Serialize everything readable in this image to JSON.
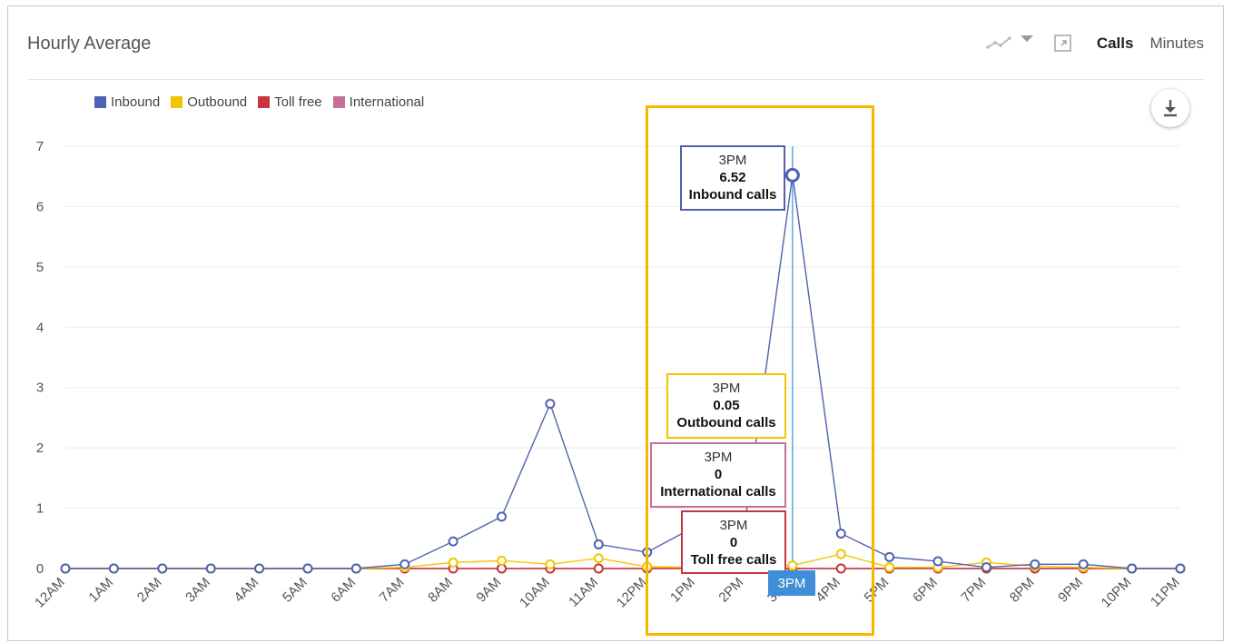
{
  "header": {
    "title": "Hourly Average",
    "calls_label": "Calls",
    "minutes_label": "Minutes"
  },
  "icons": {
    "chart_type": "line-chart-icon",
    "expand": "expand-icon",
    "download": "download-icon"
  },
  "colors": {
    "inbound": "#4e62b0",
    "outbound": "#f2c500",
    "tollfree": "#c9343f",
    "international": "#c4709a",
    "highlight": "#f5b800",
    "crosshair": "#3f8fd8"
  },
  "chart_data": {
    "type": "line",
    "title": "",
    "xlabel": "",
    "ylabel": "",
    "ylim": [
      0,
      7
    ],
    "yticks": [
      0,
      1,
      2,
      3,
      4,
      5,
      6,
      7
    ],
    "grid": true,
    "legend_position": "top-left",
    "categories": [
      "12AM",
      "1AM",
      "2AM",
      "3AM",
      "4AM",
      "5AM",
      "6AM",
      "7AM",
      "8AM",
      "9AM",
      "10AM",
      "11AM",
      "12PM",
      "1PM",
      "2PM",
      "3PM",
      "4PM",
      "5PM",
      "6PM",
      "7PM",
      "8PM",
      "9PM",
      "10PM",
      "11PM"
    ],
    "series": [
      {
        "name": "Inbound",
        "key": "inbound",
        "values": [
          0,
          0,
          0,
          0,
          0,
          0,
          0,
          0.07,
          0.45,
          0.86,
          2.73,
          0.4,
          0.27,
          0.7,
          0.65,
          6.52,
          0.58,
          0.19,
          0.12,
          0.02,
          0.07,
          0.07,
          0,
          0
        ]
      },
      {
        "name": "Outbound",
        "key": "outbound",
        "values": [
          0,
          0,
          0,
          0,
          0,
          0,
          0,
          0.02,
          0.1,
          0.13,
          0.07,
          0.17,
          0.03,
          0.02,
          0.03,
          0.05,
          0.24,
          0.02,
          0.02,
          0.1,
          0.04,
          0.02,
          0,
          0
        ]
      },
      {
        "name": "Toll free",
        "key": "tollfree",
        "values": [
          0,
          0,
          0,
          0,
          0,
          0,
          0,
          0,
          0,
          0,
          0,
          0,
          0,
          0,
          0,
          0,
          0,
          0,
          0,
          0,
          0,
          0,
          0,
          0
        ]
      },
      {
        "name": "International",
        "key": "international",
        "values": [
          0,
          0,
          0,
          0,
          0,
          0,
          0,
          0,
          0,
          0,
          0,
          0,
          0,
          0,
          0,
          0,
          0,
          0,
          0,
          0,
          0,
          0,
          0,
          0
        ]
      }
    ],
    "highlighted_category": "3PM"
  },
  "tooltips": {
    "inbound": {
      "time": "3PM",
      "value": "6.52",
      "series": "Inbound calls"
    },
    "outbound": {
      "time": "3PM",
      "value": "0.05",
      "series": "Outbound calls"
    },
    "international": {
      "time": "3PM",
      "value": "0",
      "series": "International calls"
    },
    "tollfree": {
      "time": "3PM",
      "value": "0",
      "series": "Toll free calls"
    },
    "x_crosshair": "3PM"
  }
}
